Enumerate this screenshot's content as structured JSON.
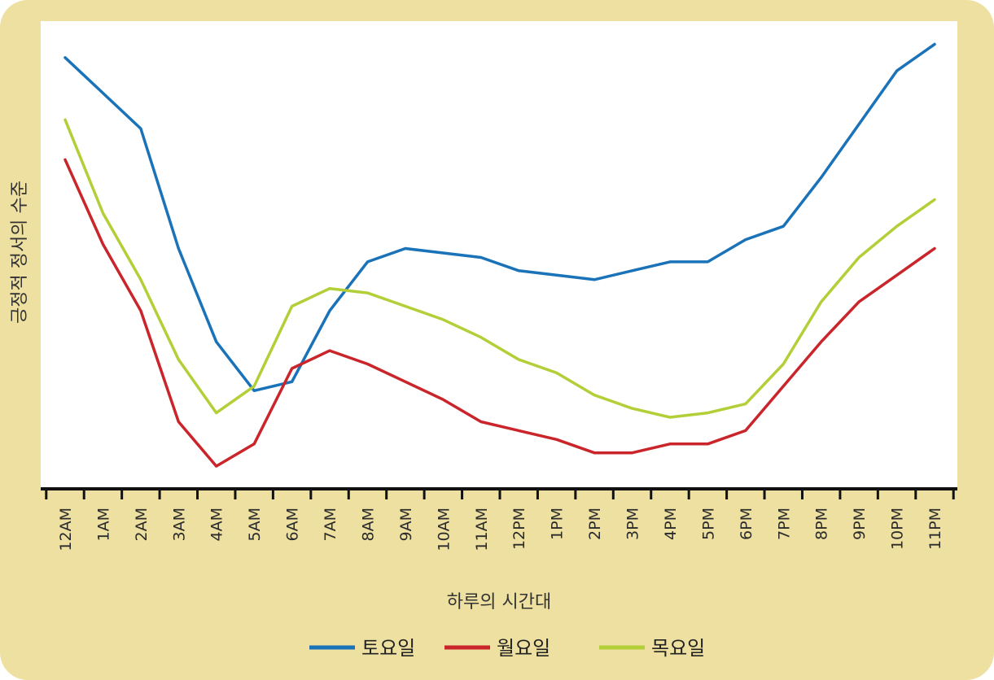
{
  "chart_data": {
    "type": "line",
    "xlabel": "하루의 시간대",
    "ylabel": "긍정적 정서의 수준",
    "categories": [
      "12AM",
      "1AM",
      "2AM",
      "3AM",
      "4AM",
      "5AM",
      "6AM",
      "7AM",
      "8AM",
      "9AM",
      "10AM",
      "11AM",
      "12PM",
      "1PM",
      "2PM",
      "3PM",
      "4PM",
      "5PM",
      "6PM",
      "7PM",
      "8PM",
      "9PM",
      "10PM",
      "11PM"
    ],
    "ylim": [
      0,
      100
    ],
    "grid": false,
    "legend_position": "bottom",
    "series": [
      {
        "name": "토요일",
        "color": "#1a73b8",
        "values": [
          94,
          86,
          78,
          51,
          30,
          19,
          21,
          37,
          48,
          51,
          50,
          49,
          46,
          45,
          44,
          46,
          48,
          48,
          53,
          56,
          67,
          79,
          91,
          97
        ]
      },
      {
        "name": "월요일",
        "color": "#c9252b",
        "values": [
          71,
          52,
          37,
          12,
          2,
          7,
          24,
          28,
          25,
          21,
          17,
          12,
          10,
          8,
          5,
          5,
          7,
          7,
          10,
          20,
          30,
          39,
          45,
          51
        ]
      },
      {
        "name": "목요일",
        "color": "#b3cf38",
        "values": [
          80,
          59,
          44,
          26,
          14,
          20,
          38,
          42,
          41,
          38,
          35,
          31,
          26,
          23,
          18,
          15,
          13,
          14,
          16,
          25,
          39,
          49,
          56,
          62
        ]
      }
    ]
  }
}
